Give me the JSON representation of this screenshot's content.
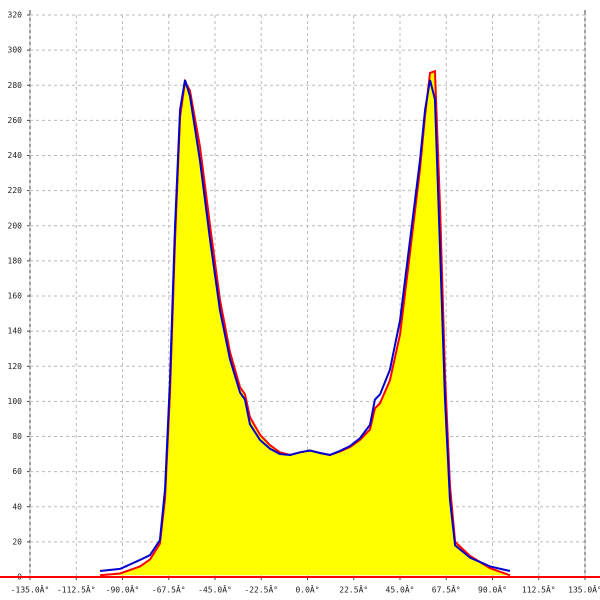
{
  "chart_data": {
    "type": "area",
    "x": [
      -100.9,
      -91.2,
      -81.5,
      -76.6,
      -71.8,
      -69.3,
      -66.9,
      -64.5,
      -62.0,
      -59.6,
      -57.2,
      -52.3,
      -47.4,
      -42.6,
      -37.7,
      -32.8,
      -30.4,
      -28.0,
      -23.1,
      -18.2,
      -13.4,
      -8.5,
      -3.6,
      1.2,
      6.1,
      10.9,
      15.8,
      20.7,
      25.5,
      30.4,
      32.8,
      35.3,
      40.1,
      45.0,
      49.9,
      54.7,
      57.2,
      59.6,
      62.0,
      64.5,
      66.9,
      69.3,
      71.8,
      79.1,
      88.8,
      98.5
    ],
    "series": [
      {
        "color": "#0000cc",
        "values": [
          3.4,
          4.6,
          9.7,
          12.5,
          21,
          50,
          112,
          198,
          266,
          283,
          274,
          237,
          192,
          152,
          124,
          105,
          101,
          87,
          78,
          73,
          70,
          69.5,
          71,
          72,
          70.6,
          69.5,
          71.8,
          74.6,
          79,
          86.6,
          101,
          104,
          118,
          146,
          192,
          237,
          266,
          283,
          272,
          186,
          101,
          44,
          18,
          11,
          6,
          3.4
        ]
      },
      {
        "color": "#ff0000",
        "fill": "#ffff00",
        "values": [
          1,
          2,
          6,
          10,
          19,
          45,
          105,
          190,
          262,
          282,
          277,
          245,
          200,
          158,
          128,
          108,
          104,
          91,
          81,
          75,
          71,
          69.5,
          71,
          72,
          70.6,
          69.5,
          71.5,
          74,
          78,
          84,
          96,
          99,
          112,
          138,
          185,
          232,
          263,
          287,
          288,
          210,
          115,
          52,
          20,
          12,
          5,
          1
        ]
      }
    ],
    "xlim": [
      -135,
      135
    ],
    "xticks": [
      {
        "value": -135,
        "label": "-135.0Â°"
      },
      {
        "value": -112.5,
        "label": "-112.5Â°"
      },
      {
        "value": -90,
        "label": "-90.0Â°"
      },
      {
        "value": -67.5,
        "label": "-67.5Â°"
      },
      {
        "value": -45,
        "label": "-45.0Â°"
      },
      {
        "value": -22.5,
        "label": "-22.5Â°"
      },
      {
        "value": 0,
        "label": "0.0Â°"
      },
      {
        "value": 22.5,
        "label": "22.5Â°"
      },
      {
        "value": 45,
        "label": "45.0Â°"
      },
      {
        "value": 67.5,
        "label": "67.5Â°"
      },
      {
        "value": 90,
        "label": "90.0Â°"
      },
      {
        "value": 112.5,
        "label": "112.5Â°"
      },
      {
        "value": 135,
        "label": "135.0Â°"
      }
    ],
    "ylim": [
      0,
      320
    ],
    "yticks": [
      0,
      20,
      40,
      60,
      80,
      100,
      120,
      140,
      160,
      180,
      200,
      220,
      240,
      260,
      280,
      300,
      320
    ],
    "grid": true
  }
}
